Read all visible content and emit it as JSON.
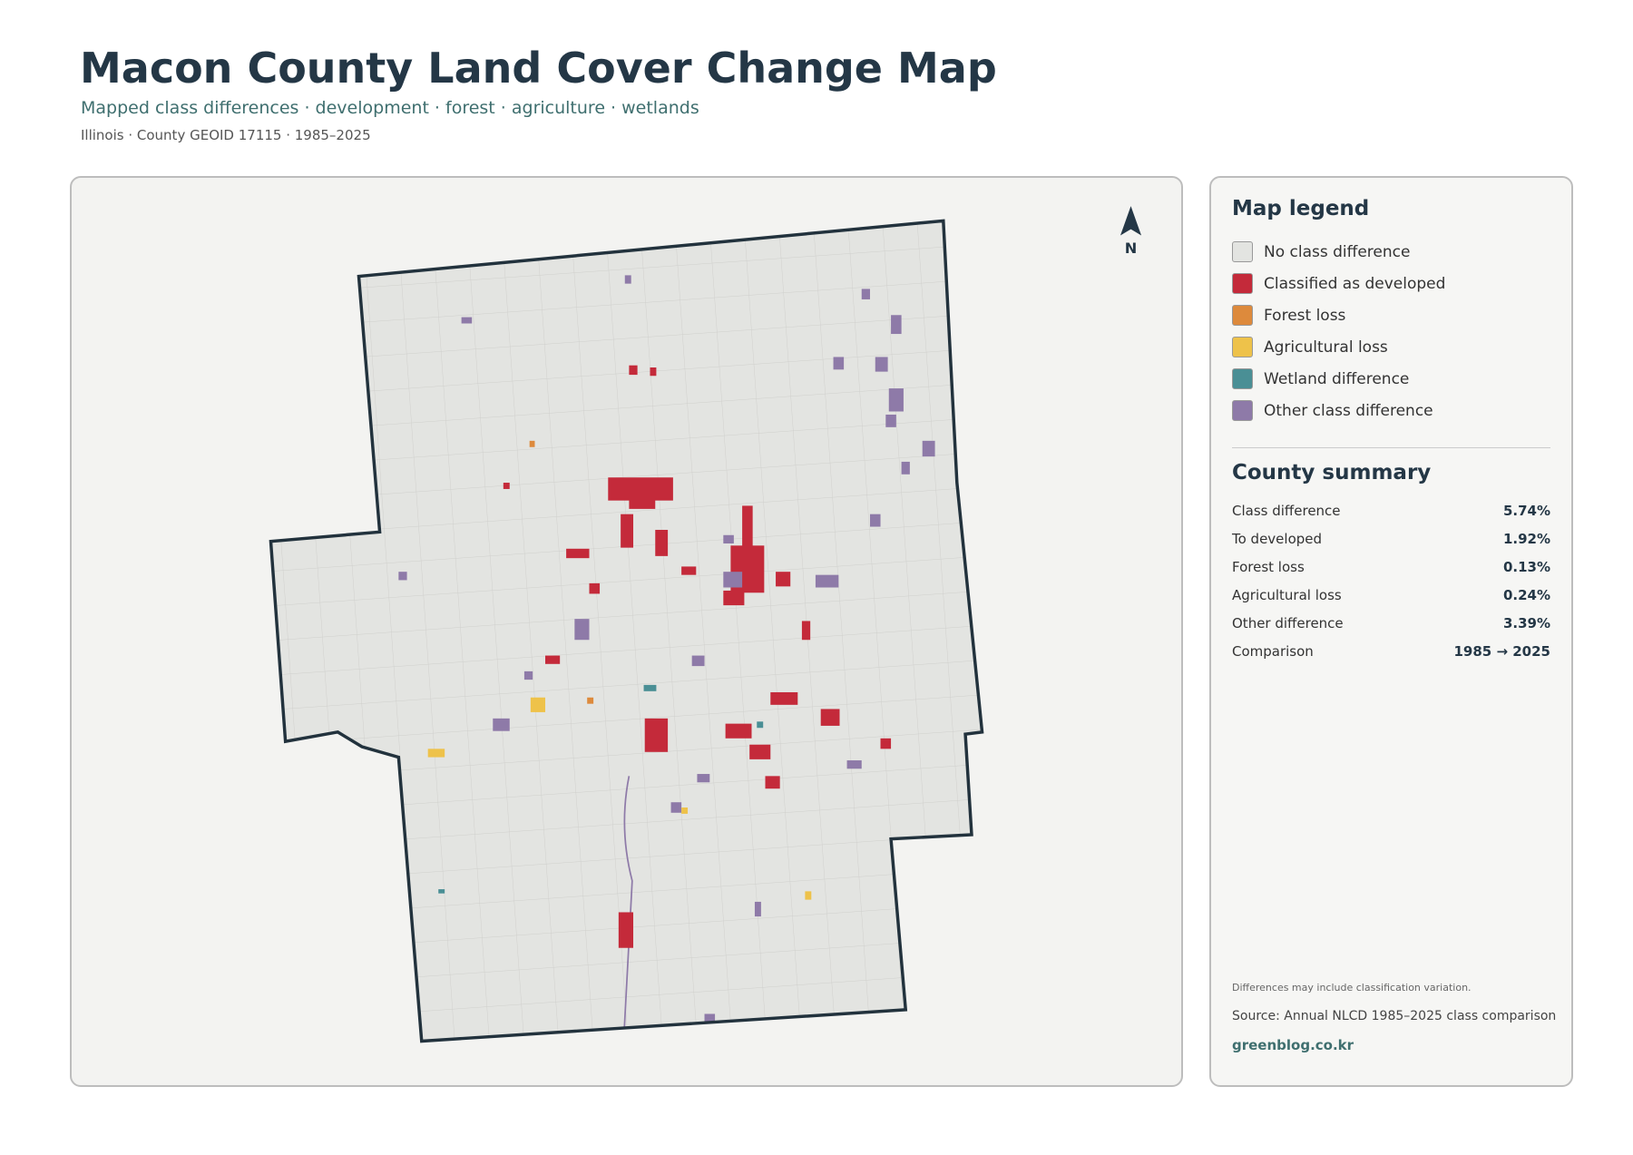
{
  "header": {
    "title": "Macon County Land Cover Change Map",
    "subtitle": "Mapped class differences · development · forest · agriculture · wetlands",
    "meta": "Illinois · County GEOID 17115 · 1985–2025"
  },
  "map": {
    "north": "N"
  },
  "legend": {
    "title": "Map legend",
    "items": [
      "No class difference",
      "Classified as developed",
      "Forest loss",
      "Agricultural loss",
      "Wetland difference",
      "Other class difference"
    ]
  },
  "summary": {
    "title": "County summary",
    "rows": [
      [
        "Class difference",
        "5.74%"
      ],
      [
        "To developed",
        "1.92%"
      ],
      [
        "Forest loss",
        "0.13%"
      ],
      [
        "Agricultural loss",
        "0.24%"
      ],
      [
        "Other difference",
        "3.39%"
      ],
      [
        "Comparison",
        "1985 → 2025"
      ]
    ]
  },
  "notes": {
    "caveat": "Differences may include classification variation.",
    "source": "Source: Annual NLCD 1985–2025 class comparison",
    "site": "greenblog.co.kr"
  }
}
